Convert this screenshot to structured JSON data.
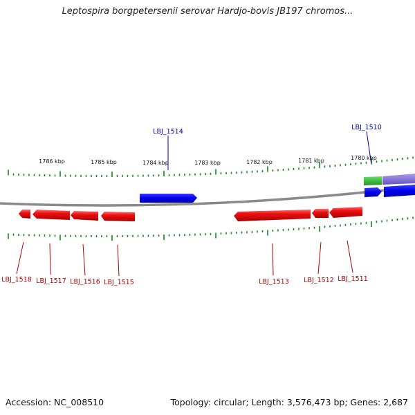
{
  "title": "Leptospira borgpetersenii serovar Hardjo-bovis JB197 chromos...",
  "footer": {
    "accession": "Accession: NC_008510",
    "topology": "Topology: circular; Length: 3,576,473 bp; Genes: 2,687"
  },
  "colors": {
    "forward_gene": "#0000ee",
    "reverse_gene": "#ee0000",
    "forward_label": "#000099",
    "reverse_label": "#aa0000",
    "tick": "#118811",
    "backbone": "#888888",
    "green_feature": "#33bb33",
    "purple_feature": "#8877cc"
  },
  "scale_labels": [
    "1786 kbp",
    "1785 kbp",
    "1784 kbp",
    "1783 kbp",
    "1782 kbp",
    "1781 kbp",
    "1780 kbp"
  ],
  "forward_genes": [
    "LBJ_1514",
    "LBJ_1510"
  ],
  "reverse_genes": [
    "LBJ_1518",
    "LBJ_1517",
    "LBJ_1516",
    "LBJ_1515",
    "LBJ_1513",
    "LBJ_1512",
    "LBJ_1511"
  ]
}
